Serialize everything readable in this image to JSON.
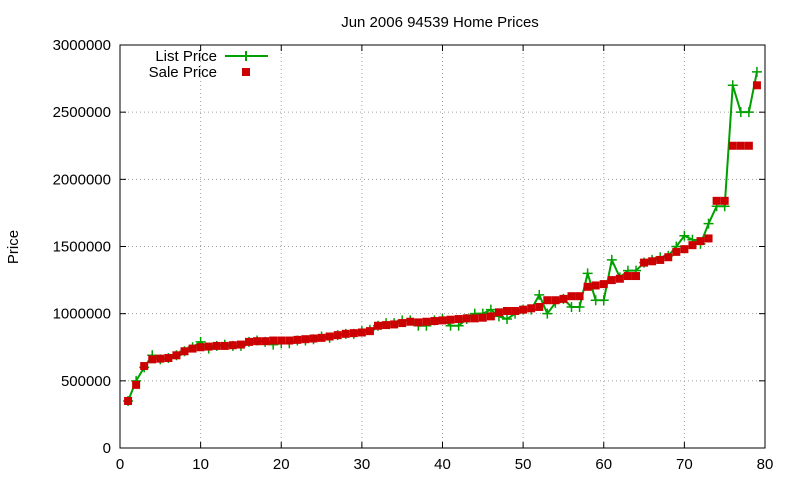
{
  "chart_data": {
    "type": "line",
    "title": "Jun 2006 94539 Home Prices",
    "xlabel": "",
    "ylabel": "Price",
    "xlim": [
      0,
      80
    ],
    "ylim": [
      0,
      3000000
    ],
    "xticks": [
      0,
      10,
      20,
      30,
      40,
      50,
      60,
      70,
      80
    ],
    "yticks": [
      0,
      500000,
      1000000,
      1500000,
      2000000,
      2500000,
      3000000
    ],
    "grid": true,
    "legend_position": "top-left",
    "x": [
      1,
      2,
      3,
      4,
      5,
      6,
      7,
      8,
      9,
      10,
      11,
      12,
      13,
      14,
      15,
      16,
      17,
      18,
      19,
      20,
      21,
      22,
      23,
      24,
      25,
      26,
      27,
      28,
      29,
      30,
      31,
      32,
      33,
      34,
      35,
      36,
      37,
      38,
      39,
      40,
      41,
      42,
      43,
      44,
      45,
      46,
      47,
      48,
      49,
      50,
      51,
      52,
      53,
      54,
      55,
      56,
      57,
      58,
      59,
      60,
      61,
      62,
      63,
      64,
      65,
      66,
      67,
      68,
      69,
      70,
      71,
      72,
      73,
      74,
      75,
      76,
      77,
      78,
      79
    ],
    "series": [
      {
        "name": "List Price",
        "style": "lines+points",
        "color": "#00a000",
        "marker": "plus",
        "values": [
          350000,
          500000,
          600000,
          690000,
          660000,
          670000,
          690000,
          720000,
          750000,
          790000,
          740000,
          760000,
          770000,
          760000,
          760000,
          790000,
          800000,
          790000,
          770000,
          780000,
          780000,
          800000,
          800000,
          810000,
          830000,
          820000,
          840000,
          850000,
          850000,
          870000,
          880000,
          910000,
          930000,
          930000,
          950000,
          950000,
          910000,
          910000,
          950000,
          960000,
          910000,
          910000,
          960000,
          1000000,
          1000000,
          1030000,
          980000,
          960000,
          1000000,
          1030000,
          1030000,
          1140000,
          1000000,
          1080000,
          1110000,
          1050000,
          1050000,
          1300000,
          1100000,
          1100000,
          1400000,
          1270000,
          1320000,
          1320000,
          1380000,
          1400000,
          1420000,
          1430000,
          1500000,
          1580000,
          1550000,
          1520000,
          1670000,
          1800000,
          1800000,
          2700000,
          2500000,
          2500000,
          2800000
        ]
      },
      {
        "name": "Sale Price",
        "style": "points",
        "color": "#cc0000",
        "marker": "square",
        "values": [
          350000,
          470000,
          610000,
          660000,
          665000,
          670000,
          690000,
          720000,
          740000,
          750000,
          755000,
          760000,
          760000,
          765000,
          770000,
          790000,
          795000,
          795000,
          800000,
          800000,
          800000,
          805000,
          810000,
          815000,
          820000,
          830000,
          840000,
          850000,
          855000,
          860000,
          870000,
          910000,
          915000,
          920000,
          930000,
          940000,
          935000,
          940000,
          945000,
          950000,
          955000,
          960000,
          965000,
          965000,
          970000,
          980000,
          1010000,
          1020000,
          1020000,
          1030000,
          1040000,
          1050000,
          1100000,
          1100000,
          1110000,
          1130000,
          1130000,
          1200000,
          1210000,
          1220000,
          1250000,
          1260000,
          1280000,
          1280000,
          1380000,
          1390000,
          1400000,
          1420000,
          1460000,
          1480000,
          1510000,
          1540000,
          1560000,
          1840000,
          1840000,
          2250000,
          2250000,
          2250000,
          2700000
        ]
      }
    ]
  }
}
